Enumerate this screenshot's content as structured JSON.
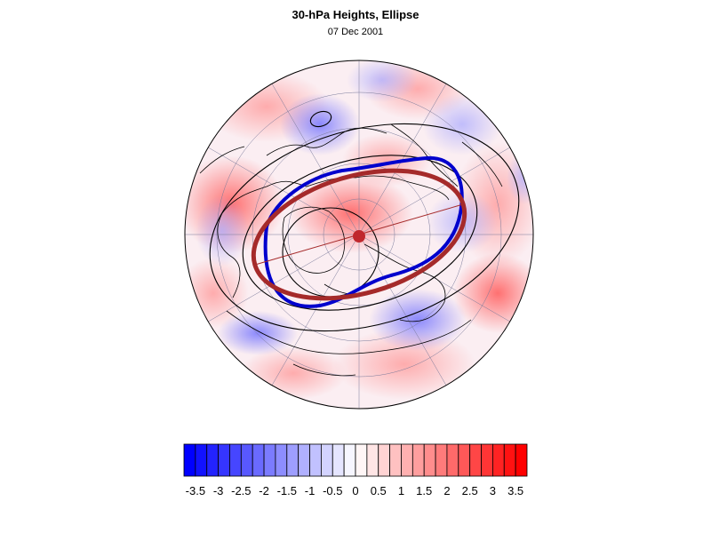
{
  "header": {
    "title": "30-hPa Heights, Ellipse",
    "date": "07 Dec 2001"
  },
  "colorbar": {
    "labels": [
      "-3.5",
      "-3",
      "-2.5",
      "-2",
      "-1.5",
      "-1",
      "-0.5",
      "0",
      "0.5",
      "1",
      "1.5",
      "2",
      "2.5",
      "3",
      "3.5"
    ],
    "min": -3.75,
    "max": 3.75,
    "step": 0.25,
    "negative_color": "#0000ff",
    "positive_color": "#ff0000"
  },
  "map": {
    "projection": "polar-stereographic-north",
    "anomaly_colors": {
      "negative": "#0000ff",
      "neutral": "#ffffff",
      "positive": "#ff0000"
    },
    "contour_color": "#000000",
    "ellipse_heights_color": "#a52a2a",
    "ellipse_climatology_color": "#0000cd"
  }
}
